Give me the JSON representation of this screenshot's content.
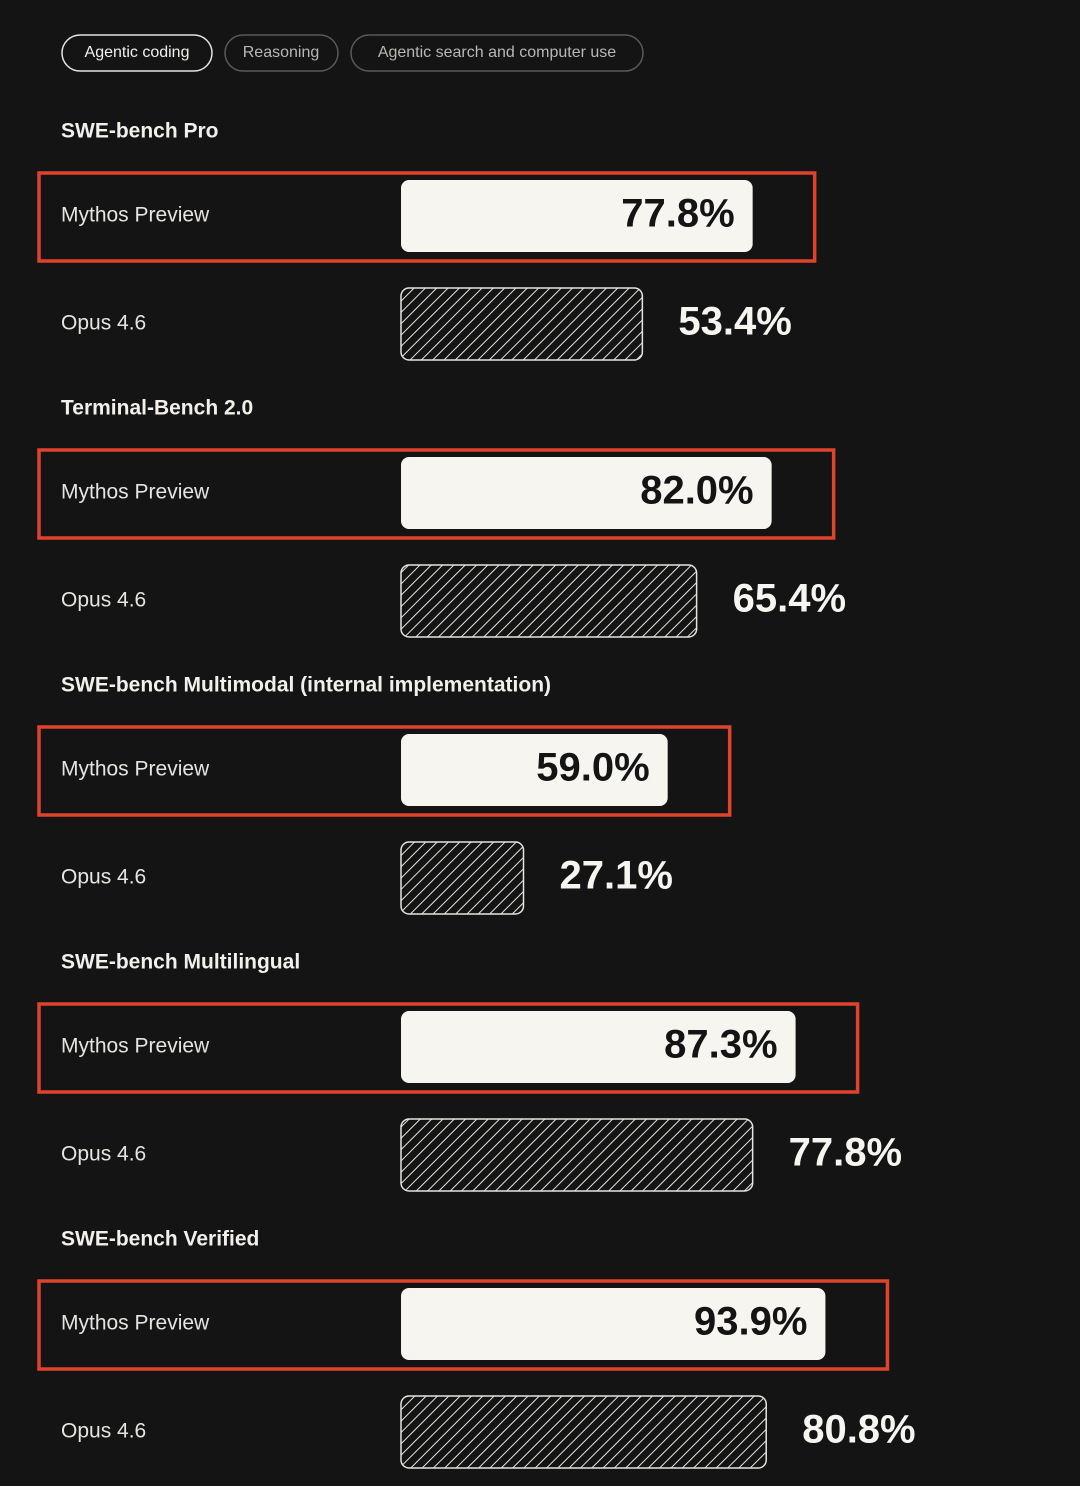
{
  "tabs": [
    "Agentic coding",
    "Reasoning",
    "Agentic search and computer use"
  ],
  "chart_data": [
    {
      "type": "bar",
      "title": "SWE-bench Pro",
      "categories": [
        "Mythos Preview",
        "Opus 4.6"
      ],
      "values": [
        77.8,
        53.4
      ],
      "value_labels": [
        "77.8%",
        "53.4%"
      ]
    },
    {
      "type": "bar",
      "title": "Terminal-Bench 2.0",
      "categories": [
        "Mythos Preview",
        "Opus 4.6"
      ],
      "values": [
        82.0,
        65.4
      ],
      "value_labels": [
        "82.0%",
        "65.4%"
      ]
    },
    {
      "type": "bar",
      "title": "SWE-bench Multimodal (internal implementation)",
      "categories": [
        "Mythos Preview",
        "Opus 4.6"
      ],
      "values": [
        59.0,
        27.1
      ],
      "value_labels": [
        "59.0%",
        "27.1%"
      ]
    },
    {
      "type": "bar",
      "title": "SWE-bench Multilingual",
      "categories": [
        "Mythos Preview",
        "Opus 4.6"
      ],
      "values": [
        87.3,
        77.8
      ],
      "value_labels": [
        "87.3%",
        "77.8%"
      ]
    },
    {
      "type": "bar",
      "title": "SWE-bench Verified",
      "categories": [
        "Mythos Preview",
        "Opus 4.6"
      ],
      "values": [
        93.9,
        80.8
      ],
      "value_labels": [
        "93.9%",
        "80.8%"
      ]
    }
  ]
}
